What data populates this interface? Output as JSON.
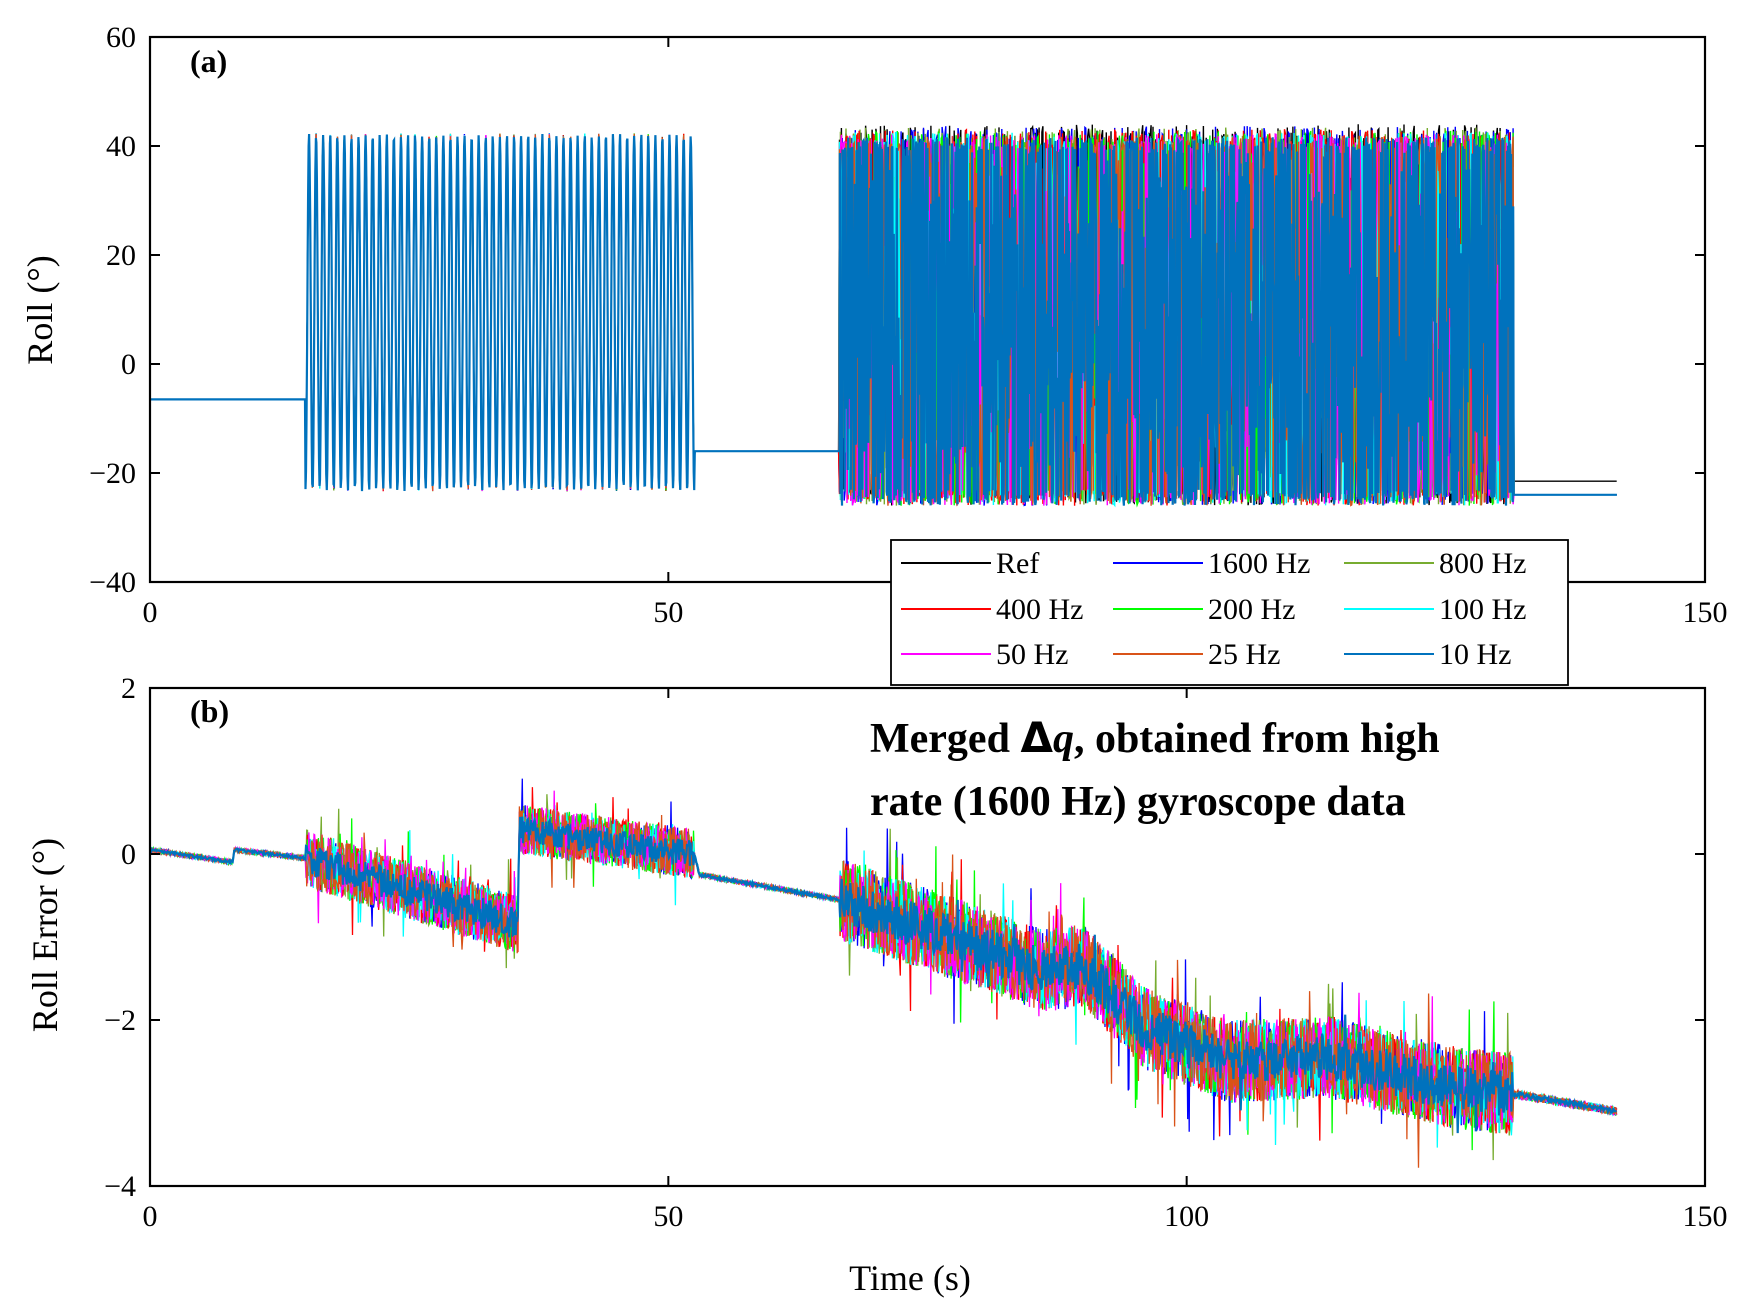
{
  "chart_data": [
    {
      "type": "line",
      "panel_label": "(a)",
      "title": "",
      "xlabel": "",
      "ylabel": "Roll (°)",
      "xlim": [
        0,
        150
      ],
      "ylim": [
        -40,
        60
      ],
      "xticks": [
        0,
        50,
        150
      ],
      "xtick_labels": [
        "0",
        "50",
        "150"
      ],
      "yticks": [
        -40,
        -20,
        0,
        20,
        40,
        60
      ],
      "ytick_labels": [
        "−40",
        "−20",
        "0",
        "20",
        "40",
        "60"
      ],
      "segments": [
        {
          "t0": 0,
          "t1": 15,
          "kind": "flat",
          "value": -6.5
        },
        {
          "t0": 15,
          "t1": 52.5,
          "kind": "sine",
          "min": -23,
          "max": 42,
          "cycles": 55
        },
        {
          "t0": 52.5,
          "t1": 66.5,
          "kind": "flat",
          "value": -16
        },
        {
          "t0": 66.5,
          "t1": 131.5,
          "kind": "dense",
          "min": -26,
          "max": 44
        },
        {
          "t0": 131.5,
          "t1": 141.5,
          "kind": "flat",
          "value_ref": -21.5,
          "value_other": -24
        }
      ]
    },
    {
      "type": "line",
      "panel_label": "(b)",
      "title": "",
      "xlabel": "Time (s)",
      "ylabel": "Roll Error (°)",
      "xlim": [
        0,
        150
      ],
      "ylim": [
        -4,
        2
      ],
      "xticks": [
        0,
        50,
        100,
        150
      ],
      "xtick_labels": [
        "0",
        "50",
        "100",
        "150"
      ],
      "yticks": [
        -4,
        -2,
        0,
        2
      ],
      "ytick_labels": [
        "−4",
        "−2",
        "0",
        "2"
      ],
      "trend": [
        {
          "t": 0,
          "v": 0.05
        },
        {
          "t": 8,
          "v": -0.1
        },
        {
          "t": 8.1,
          "v": 0.05
        },
        {
          "t": 15,
          "v": -0.05
        },
        {
          "t": 35.5,
          "v": -0.85
        },
        {
          "t": 35.6,
          "v": 0.3
        },
        {
          "t": 52.5,
          "v": 0.0
        },
        {
          "t": 53,
          "v": -0.25
        },
        {
          "t": 66.5,
          "v": -0.55
        },
        {
          "t": 76,
          "v": -0.95
        },
        {
          "t": 86,
          "v": -1.4
        },
        {
          "t": 90,
          "v": -1.35
        },
        {
          "t": 96,
          "v": -2.1
        },
        {
          "t": 104,
          "v": -2.5
        },
        {
          "t": 114,
          "v": -2.45
        },
        {
          "t": 125,
          "v": -2.8
        },
        {
          "t": 131.5,
          "v": -2.9
        },
        {
          "t": 132,
          "v": -2.9
        },
        {
          "t": 141.5,
          "v": -3.1
        }
      ],
      "noise": [
        {
          "t0": 0,
          "t1": 15,
          "amp": 0.03
        },
        {
          "t0": 15,
          "t1": 35.5,
          "amp": 0.35
        },
        {
          "t0": 35.6,
          "t1": 52.5,
          "amp": 0.3
        },
        {
          "t0": 52.5,
          "t1": 66.5,
          "amp": 0.03
        },
        {
          "t0": 66.5,
          "t1": 131.5,
          "amp": 0.5
        },
        {
          "t0": 131.5,
          "t1": 141.5,
          "amp": 0.05
        }
      ]
    }
  ],
  "legend": {
    "placement": "top-right of panel (b)",
    "entries": [
      {
        "label": "Ref",
        "color": "#000000"
      },
      {
        "label": "1600 Hz",
        "color": "#0000ff"
      },
      {
        "label": "800 Hz",
        "color": "#77ac30"
      },
      {
        "label": "400 Hz",
        "color": "#ff0000"
      },
      {
        "label": "200 Hz",
        "color": "#00ff00"
      },
      {
        "label": "100 Hz",
        "color": "#00ffff"
      },
      {
        "label": "50 Hz",
        "color": "#ff00ff"
      },
      {
        "label": "25 Hz",
        "color": "#d95319"
      },
      {
        "label": "10 Hz",
        "color": "#0072bd"
      }
    ]
  },
  "annotation": {
    "line1_prefix": "Merged ",
    "delta": "Δ",
    "q": "q",
    "line1_suffix": ", obtained from high",
    "line2": "rate (1600 Hz) gyroscope data"
  }
}
